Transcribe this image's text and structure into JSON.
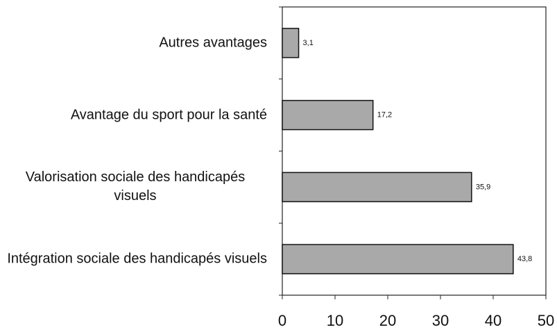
{
  "chart_data": {
    "type": "barh",
    "categories": [
      "Autres avantages",
      "Avantage du sport pour la santé",
      "Valorisation sociale des handicapés visuels",
      "Intégration sociale des handicapés visuels"
    ],
    "values": [
      3.1,
      17.2,
      35.9,
      43.8
    ],
    "value_labels": [
      "3,1",
      "17,2",
      "35,9",
      "43,8"
    ],
    "color": "#a9a9a9",
    "xlim": [
      0,
      50
    ],
    "xticks": [
      0,
      10,
      20,
      30,
      40,
      50
    ]
  }
}
